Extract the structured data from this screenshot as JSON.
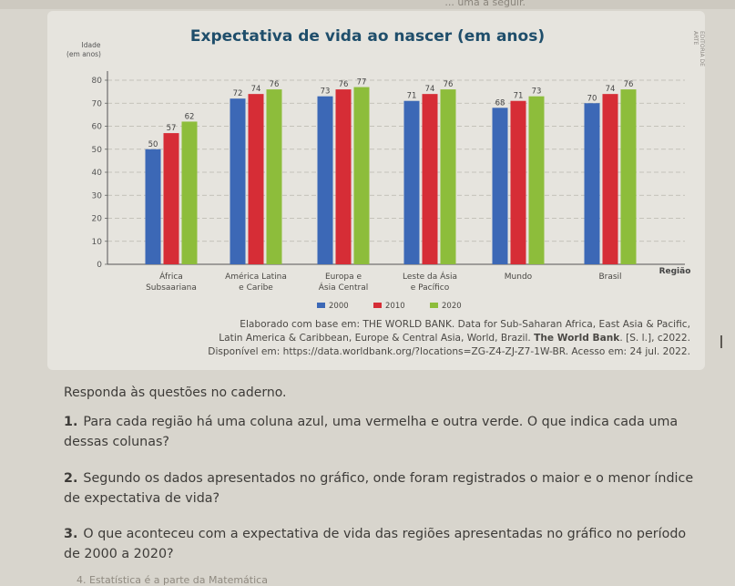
{
  "page": {
    "top_fragment": "... uma a seguir.",
    "side_caption": "EDITORIA DE ARTE",
    "bottom_fragment": "4. Estatística é a parte da Matemática"
  },
  "chart_data": {
    "type": "bar",
    "title": "Expectativa de vida ao nascer (em anos)",
    "ylabel": "Idade (em anos)",
    "xlabel": "Região",
    "ylim": [
      0,
      80
    ],
    "yticks": [
      0,
      10,
      20,
      30,
      40,
      50,
      60,
      70,
      80
    ],
    "grid": true,
    "legend_position": "bottom",
    "categories": [
      "África Subsaariana",
      "América Latina e Caribe",
      "Europa e Ásia Central",
      "Leste da Ásia e Pacífico",
      "Mundo",
      "Brasil"
    ],
    "series": [
      {
        "name": "2000",
        "color": "#3c68b6",
        "values": [
          50,
          72,
          73,
          71,
          68,
          70
        ]
      },
      {
        "name": "2010",
        "color": "#d62d36",
        "values": [
          57,
          74,
          76,
          74,
          71,
          74
        ]
      },
      {
        "name": "2020",
        "color": "#8dbd3b",
        "values": [
          62,
          76,
          77,
          76,
          73,
          76
        ]
      }
    ]
  },
  "source": {
    "line1": "Elaborado com base em: THE WORLD BANK. Data for Sub-Saharan Africa, East Asia & Pacific,",
    "line2a": "Latin America & Caribbean, Europe & Central Asia, World, Brazil. ",
    "line2b": "The World Bank",
    "line2c": ". [S. l.], c2022.",
    "line3": "Disponível em: https://data.worldbank.org/?locations=ZG-Z4-ZJ-Z7-1W-BR. Acesso em: 24 jul. 2022."
  },
  "instructions": "Responda às questões no caderno.",
  "questions": [
    {
      "num": "1.",
      "text": "Para cada região há uma coluna azul, uma vermelha e outra verde. O que indica cada uma dessas colunas?"
    },
    {
      "num": "2.",
      "text": "Segundo os dados apresentados no gráfico, onde foram registrados o maior e o menor índice de expectativa de vida?"
    },
    {
      "num": "3.",
      "text": "O que aconteceu com a expectativa de vida das regiões apresentadas no gráfico no período de 2000 a 2020?"
    }
  ]
}
